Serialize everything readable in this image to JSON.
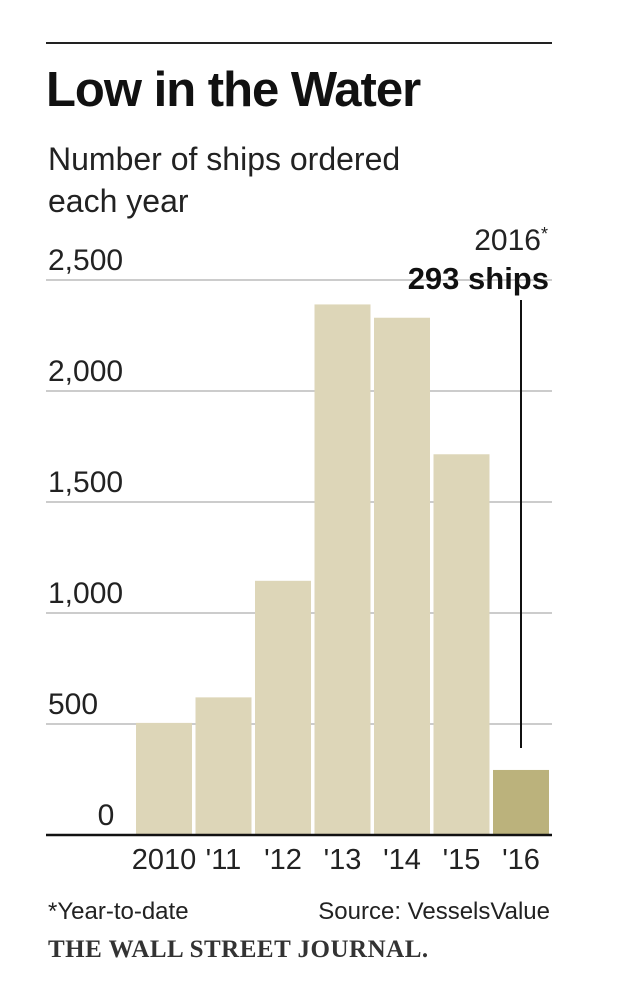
{
  "title": "Low in the Water",
  "subtitle": "Number of ships ordered each year",
  "footnote": "*Year-to-date",
  "source": "Source: VesselsValue",
  "brand": "THE WALL STREET JOURNAL.",
  "colors": {
    "bar": "#ddd6b8",
    "highlight": "#bbb27c",
    "grid": "#bbbbbb",
    "axis": "#111111"
  },
  "chart_data": {
    "type": "bar",
    "title": "Low in the Water",
    "subtitle": "Number of ships ordered each year",
    "categories": [
      "2010",
      "'11",
      "'12",
      "'13",
      "'14",
      "'15",
      "'16"
    ],
    "values": [
      505,
      620,
      1145,
      2390,
      2330,
      1715,
      293
    ],
    "ylim": [
      0,
      2500
    ],
    "yticks": [
      {
        "value": 0,
        "label": "0"
      },
      {
        "value": 500,
        "label": "500"
      },
      {
        "value": 1000,
        "label": "1,000"
      },
      {
        "value": 1500,
        "label": "1,500"
      },
      {
        "value": 2000,
        "label": "2,000"
      },
      {
        "value": 2500,
        "label": "2,500"
      }
    ],
    "grid": true,
    "highlight_index": 6,
    "annotation": {
      "label": "2016",
      "marker": "*",
      "value_text": "293 ships"
    }
  }
}
